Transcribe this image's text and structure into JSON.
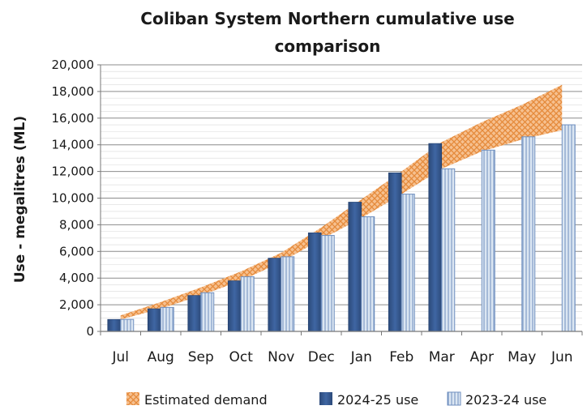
{
  "colors": {
    "bar_2024_25": "#3a5e96",
    "bar_2023_24_fill": "#dbe6f2",
    "bar_2023_24_stripe": "#6f8fbf",
    "demand_fill": "#f6c08f",
    "demand_hatch": "#e58a3a",
    "gridline": "#8c8c8c",
    "minor_grid": "#d9d9d9"
  },
  "chart_data": {
    "type": "bar",
    "title": "Coliban System Northern cumulative use comparison",
    "title_lines": [
      "Coliban System Northern cumulative use",
      "comparison"
    ],
    "ylabel": "Use - megalitres (ML)",
    "xlabel": "",
    "ylim": [
      0,
      20000
    ],
    "yticks": [
      0,
      2000,
      4000,
      6000,
      8000,
      10000,
      12000,
      14000,
      16000,
      18000,
      20000
    ],
    "ytick_labels": [
      "0",
      "2,000",
      "4,000",
      "6,000",
      "8,000",
      "10,000",
      "12,000",
      "14,000",
      "16,000",
      "18,000",
      "20,000"
    ],
    "grid": true,
    "legend_position": "bottom",
    "categories": [
      "Jul",
      "Aug",
      "Sep",
      "Oct",
      "Nov",
      "Dec",
      "Jan",
      "Feb",
      "Mar",
      "Apr",
      "May",
      "Jun"
    ],
    "estimated_demand": {
      "name": "Estimated demand",
      "low": [
        900,
        1700,
        2700,
        3800,
        5200,
        6900,
        8500,
        10300,
        12200,
        13500,
        14400,
        15100
      ],
      "high": [
        1200,
        2200,
        3300,
        4500,
        5900,
        7800,
        9900,
        12000,
        14200,
        15700,
        17000,
        18500
      ]
    },
    "series": [
      {
        "name": "2024-25 use",
        "values": [
          900,
          1700,
          2700,
          3800,
          5500,
          7400,
          9700,
          11900,
          14100,
          null,
          null,
          null
        ]
      },
      {
        "name": "2023-24 use",
        "values": [
          900,
          1800,
          2900,
          4100,
          5600,
          7200,
          8600,
          10300,
          12200,
          13600,
          14600,
          15500
        ]
      }
    ]
  }
}
